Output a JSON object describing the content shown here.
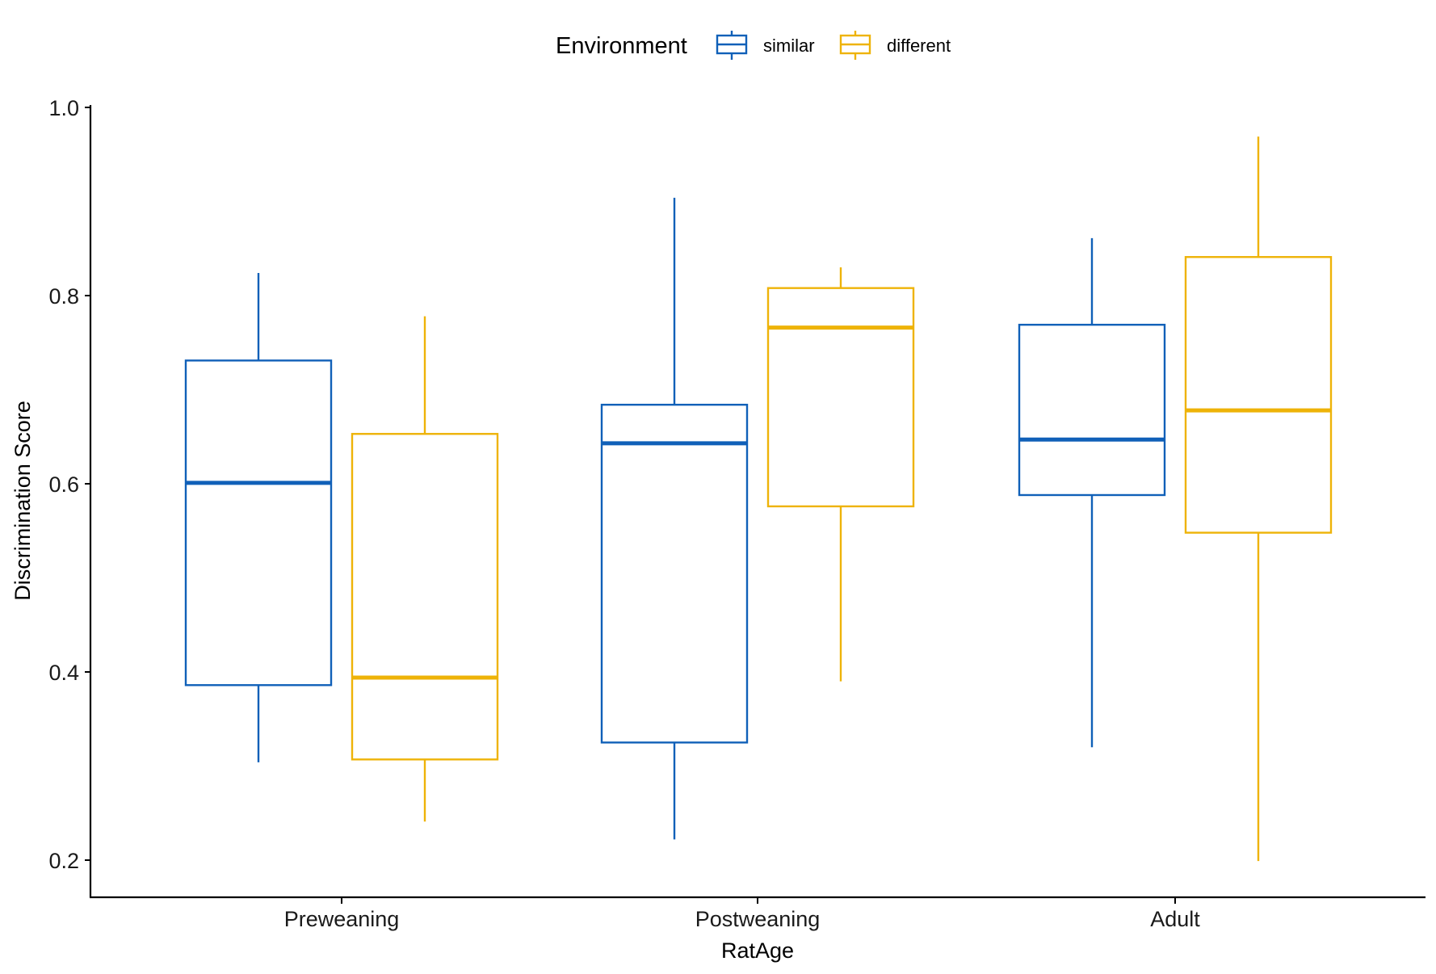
{
  "chart_data": {
    "type": "boxplot",
    "xlabel": "RatAge",
    "ylabel": "Discrimination Score",
    "ylim": [
      0.16,
      1.0
    ],
    "yticks": [
      "0.2",
      "0.4",
      "0.6",
      "0.8",
      "1.0"
    ],
    "categories": [
      "Preweaning",
      "Postweaning",
      "Adult"
    ],
    "legend": {
      "title": "Environment",
      "position": "top"
    },
    "series": [
      {
        "name": "similar",
        "color": "#1060B8",
        "boxes": [
          {
            "min": 0.304,
            "q1": 0.386,
            "median": 0.601,
            "q3": 0.731,
            "max": 0.824
          },
          {
            "min": 0.222,
            "q1": 0.325,
            "median": 0.643,
            "q3": 0.684,
            "max": 0.904
          },
          {
            "min": 0.32,
            "q1": 0.588,
            "median": 0.647,
            "q3": 0.769,
            "max": 0.861
          }
        ]
      },
      {
        "name": "different",
        "color": "#EEB308",
        "boxes": [
          {
            "min": 0.241,
            "q1": 0.307,
            "median": 0.394,
            "q3": 0.653,
            "max": 0.778
          },
          {
            "min": 0.39,
            "q1": 0.576,
            "median": 0.766,
            "q3": 0.808,
            "max": 0.83
          },
          {
            "min": 0.199,
            "q1": 0.548,
            "median": 0.678,
            "q3": 0.841,
            "max": 0.969
          }
        ]
      }
    ]
  }
}
